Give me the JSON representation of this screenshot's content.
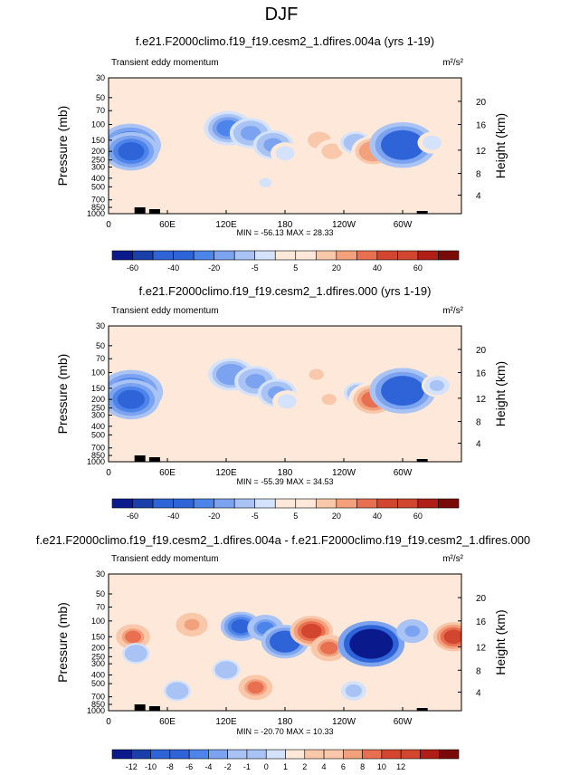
{
  "page_title": "DJF",
  "colors": {
    "background": "#fde8d9",
    "frame": "#000000",
    "topo": "#000000",
    "label_scale": [
      "#0a1a8c",
      "#1a3fa8",
      "#2e64d8",
      "#4d84ea",
      "#7ba3f0",
      "#a9c3f5",
      "#d4e3fb",
      "#fde8d9",
      "#f9c7a9",
      "#f3a07c",
      "#e86f4f",
      "#d2452f",
      "#b01f17",
      "#7a0a08"
    ]
  },
  "chart_data": [
    {
      "type": "heatmap",
      "title": "f.e21.F2000climo.f19_f19.cesm2_1.dfires.004a (yrs 1-19)",
      "left_label": "Transient eddy momentum",
      "units_label": "m²/s²",
      "ylabel": "Pressure (mb)",
      "y2label": "Height (km)",
      "x_ticks": [
        "0",
        "60E",
        "120E",
        "180",
        "120W",
        "60W"
      ],
      "y_ticks": [
        "30",
        "50",
        "70",
        "100",
        "150",
        "200",
        "250",
        "300",
        "400",
        "500",
        "700",
        "850",
        "1000"
      ],
      "y2_ticks": [
        "20",
        "16",
        "12",
        "8",
        "4"
      ],
      "stats_label": "MIN = -56.13   MAX = 28.33",
      "colorbar_labels": [
        "-60",
        "-40",
        "-20",
        "-5",
        "5",
        "20",
        "40",
        "60"
      ],
      "contour_levels": [
        -70,
        -60,
        -50,
        -40,
        -30,
        -20,
        -10,
        -5,
        5,
        10,
        20,
        30,
        40,
        50,
        60,
        70
      ],
      "xlim": [
        0,
        360
      ],
      "ylim": [
        1000,
        30
      ],
      "min": -56.13,
      "max": 28.33,
      "features": [
        {
          "lon": 22,
          "p": 170,
          "value": -50
        },
        {
          "lon": 23,
          "p": 200,
          "value": -42
        },
        {
          "lon": 122,
          "p": 110,
          "value": -34
        },
        {
          "lon": 145,
          "p": 125,
          "value": -26
        },
        {
          "lon": 168,
          "p": 170,
          "value": -24
        },
        {
          "lon": 180,
          "p": 210,
          "value": -10
        },
        {
          "lon": 215,
          "p": 150,
          "value": 18
        },
        {
          "lon": 228,
          "p": 200,
          "value": 14
        },
        {
          "lon": 252,
          "p": 160,
          "value": -20
        },
        {
          "lon": 270,
          "p": 200,
          "value": 28
        },
        {
          "lon": 300,
          "p": 170,
          "value": -56
        },
        {
          "lon": 330,
          "p": 160,
          "value": -10
        },
        {
          "lon": 160,
          "p": 450,
          "value": -6
        },
        {
          "lon": 110,
          "p": 500,
          "value": 7
        }
      ]
    },
    {
      "type": "heatmap",
      "title": "f.e21.F2000climo.f19_f19.cesm2_1.dfires.000 (yrs 1-19)",
      "left_label": "Transient eddy momentum",
      "units_label": "m²/s²",
      "ylabel": "Pressure (mb)",
      "y2label": "Height (km)",
      "x_ticks": [
        "0",
        "60E",
        "120E",
        "180",
        "120W",
        "60W"
      ],
      "y_ticks": [
        "30",
        "50",
        "70",
        "100",
        "150",
        "200",
        "250",
        "300",
        "400",
        "500",
        "700",
        "850",
        "1000"
      ],
      "y2_ticks": [
        "20",
        "16",
        "12",
        "8",
        "4"
      ],
      "stats_label": "MIN = -55.39   MAX = 34.53",
      "colorbar_labels": [
        "-60",
        "-40",
        "-20",
        "-5",
        "5",
        "20",
        "40",
        "60"
      ],
      "contour_levels": [
        -70,
        -60,
        -50,
        -40,
        -30,
        -20,
        -10,
        -5,
        5,
        10,
        20,
        30,
        40,
        50,
        60,
        70
      ],
      "xlim": [
        0,
        360
      ],
      "ylim": [
        1000,
        30
      ],
      "min": -55.39,
      "max": 34.53,
      "features": [
        {
          "lon": 23,
          "p": 165,
          "value": -52
        },
        {
          "lon": 23,
          "p": 200,
          "value": -44
        },
        {
          "lon": 125,
          "p": 105,
          "value": -30
        },
        {
          "lon": 150,
          "p": 125,
          "value": -26
        },
        {
          "lon": 172,
          "p": 170,
          "value": -22
        },
        {
          "lon": 182,
          "p": 210,
          "value": -10
        },
        {
          "lon": 212,
          "p": 105,
          "value": 12
        },
        {
          "lon": 225,
          "p": 200,
          "value": 12
        },
        {
          "lon": 255,
          "p": 170,
          "value": -18
        },
        {
          "lon": 270,
          "p": 200,
          "value": 34
        },
        {
          "lon": 300,
          "p": 160,
          "value": -55
        },
        {
          "lon": 335,
          "p": 140,
          "value": -12
        },
        {
          "lon": 95,
          "p": 190,
          "value": 6
        },
        {
          "lon": 140,
          "p": 450,
          "value": 7
        }
      ]
    },
    {
      "type": "heatmap",
      "title": "f.e21.F2000climo.f19_f19.cesm2_1.dfires.004a - f.e21.F2000climo.f19_f19.cesm2_1.dfires.000",
      "left_label": "Transient eddy momentum",
      "units_label": "m²/s²",
      "ylabel": "Pressure (mb)",
      "y2label": "Height (km)",
      "x_ticks": [
        "0",
        "60E",
        "120E",
        "180",
        "120W",
        "60W"
      ],
      "y_ticks": [
        "30",
        "50",
        "70",
        "100",
        "150",
        "200",
        "250",
        "300",
        "400",
        "500",
        "700",
        "850",
        "1000"
      ],
      "y2_ticks": [
        "20",
        "16",
        "12",
        "8",
        "4"
      ],
      "stats_label": "MIN = -20.70   MAX = 10.33",
      "colorbar_labels": [
        "-12",
        "-10",
        "-8",
        "-6",
        "-4",
        "-2",
        "-1",
        "0",
        "1",
        "2",
        "4",
        "6",
        "8",
        "10",
        "12"
      ],
      "contour_levels": [
        -14,
        -12,
        -10,
        -8,
        -6,
        -4,
        -2,
        -1,
        0,
        1,
        2,
        4,
        6,
        8,
        10,
        12,
        14
      ],
      "xlim": [
        0,
        360
      ],
      "ylim": [
        1000,
        30
      ],
      "min": -20.7,
      "max": 10.33,
      "features": [
        {
          "lon": 25,
          "p": 150,
          "value": 6
        },
        {
          "lon": 28,
          "p": 230,
          "value": -3
        },
        {
          "lon": 85,
          "p": 110,
          "value": 5
        },
        {
          "lon": 135,
          "p": 115,
          "value": -9
        },
        {
          "lon": 160,
          "p": 120,
          "value": -7
        },
        {
          "lon": 180,
          "p": 170,
          "value": -12
        },
        {
          "lon": 207,
          "p": 130,
          "value": 10
        },
        {
          "lon": 225,
          "p": 200,
          "value": 7
        },
        {
          "lon": 250,
          "p": 200,
          "value": -5
        },
        {
          "lon": 268,
          "p": 180,
          "value": -20.7
        },
        {
          "lon": 310,
          "p": 130,
          "value": -5
        },
        {
          "lon": 352,
          "p": 150,
          "value": 9
        },
        {
          "lon": 150,
          "p": 550,
          "value": 6
        },
        {
          "lon": 70,
          "p": 600,
          "value": -3
        },
        {
          "lon": 120,
          "p": 350,
          "value": -3
        },
        {
          "lon": 250,
          "p": 600,
          "value": -2
        }
      ]
    }
  ]
}
